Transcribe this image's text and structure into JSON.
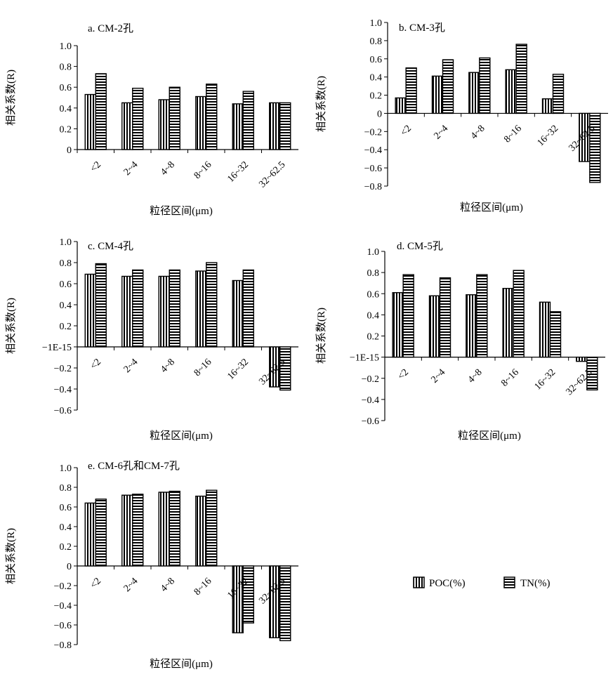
{
  "shared": {
    "ylabel": "相关系数(R)",
    "xlabel": "粒径区间(μm)",
    "series_names": [
      "POC(%)",
      "TN(%)"
    ]
  },
  "chart_data": [
    {
      "type": "bar",
      "title": "a. CM-2孔",
      "categories": [
        "<2",
        "2~4",
        "4~8",
        "8~16",
        "16~32",
        "32~62.5"
      ],
      "ylim": [
        0,
        1.0
      ],
      "yticks": [
        "0",
        "0.2",
        "0.4",
        "0.6",
        "0.8",
        "1.0"
      ],
      "series": [
        {
          "name": "POC(%)",
          "values": [
            0.53,
            0.45,
            0.48,
            0.51,
            0.44,
            0.45
          ]
        },
        {
          "name": "TN(%)",
          "values": [
            0.73,
            0.59,
            0.6,
            0.63,
            0.56,
            0.45
          ]
        }
      ],
      "xlabel": "粒径区间(μm)",
      "ylabel": "相关系数(R)"
    },
    {
      "type": "bar",
      "title": "b. CM-3孔",
      "categories": [
        "<2",
        "2~4",
        "4~8",
        "8~16",
        "16~32",
        "32~62.5"
      ],
      "ylim": [
        -0.8,
        1.0
      ],
      "yticks": [
        "−0.8",
        "−0.6",
        "−0.4",
        "−0.2",
        "0",
        "0.2",
        "0.4",
        "0.6",
        "0.8",
        "1.0"
      ],
      "series": [
        {
          "name": "POC(%)",
          "values": [
            0.17,
            0.41,
            0.45,
            0.48,
            0.16,
            -0.53
          ]
        },
        {
          "name": "TN(%)",
          "values": [
            0.5,
            0.59,
            0.61,
            0.76,
            0.43,
            -0.76
          ]
        }
      ],
      "xlabel": "粒径区间(μm)",
      "ylabel": "相关系数(R)"
    },
    {
      "type": "bar",
      "title": "c. CM-4孔",
      "categories": [
        "<2",
        "2~4",
        "4~8",
        "8~16",
        "16~32",
        "32~62.5"
      ],
      "ylim": [
        -0.6,
        1.0
      ],
      "yticks": [
        "−0.6",
        "−0.4",
        "−0.2",
        "−1E-15",
        "0.2",
        "0.4",
        "0.6",
        "0.8",
        "1.0"
      ],
      "series": [
        {
          "name": "POC(%)",
          "values": [
            0.69,
            0.67,
            0.67,
            0.72,
            0.63,
            -0.38
          ]
        },
        {
          "name": "TN(%)",
          "values": [
            0.79,
            0.73,
            0.73,
            0.8,
            0.73,
            -0.41
          ]
        }
      ],
      "xlabel": "粒径区间(μm)",
      "ylabel": "相关系数(R)"
    },
    {
      "type": "bar",
      "title": "d. CM-5孔",
      "categories": [
        "<2",
        "2~4",
        "4~8",
        "8~16",
        "16~32",
        "32~62.5"
      ],
      "ylim": [
        -0.6,
        1.0
      ],
      "yticks": [
        "−0.6",
        "−0.4",
        "−0.2",
        "−1E-15",
        "0.2",
        "0.4",
        "0.6",
        "0.8",
        "1.0"
      ],
      "series": [
        {
          "name": "POC(%)",
          "values": [
            0.61,
            0.58,
            0.59,
            0.65,
            0.52,
            -0.04
          ]
        },
        {
          "name": "TN(%)",
          "values": [
            0.78,
            0.75,
            0.78,
            0.82,
            0.43,
            -0.31
          ]
        }
      ],
      "xlabel": "粒径区间(μm)",
      "ylabel": "相关系数(R)"
    },
    {
      "type": "bar",
      "title": "e. CM-6孔和CM-7孔",
      "categories": [
        "<2",
        "2~4",
        "4~8",
        "8~16",
        "16~32",
        "32~62.5"
      ],
      "ylim": [
        -0.8,
        1.0
      ],
      "yticks": [
        "−0.8",
        "−0.6",
        "−0.4",
        "−0.2",
        "0",
        "0.2",
        "0.4",
        "0.6",
        "0.8",
        "1.0"
      ],
      "series": [
        {
          "name": "POC(%)",
          "values": [
            0.64,
            0.72,
            0.75,
            0.71,
            -0.68,
            -0.73
          ]
        },
        {
          "name": "TN(%)",
          "values": [
            0.68,
            0.73,
            0.76,
            0.77,
            -0.58,
            -0.76
          ]
        }
      ],
      "xlabel": "粒径区间(μm)",
      "ylabel": "相关系数(R)"
    }
  ]
}
